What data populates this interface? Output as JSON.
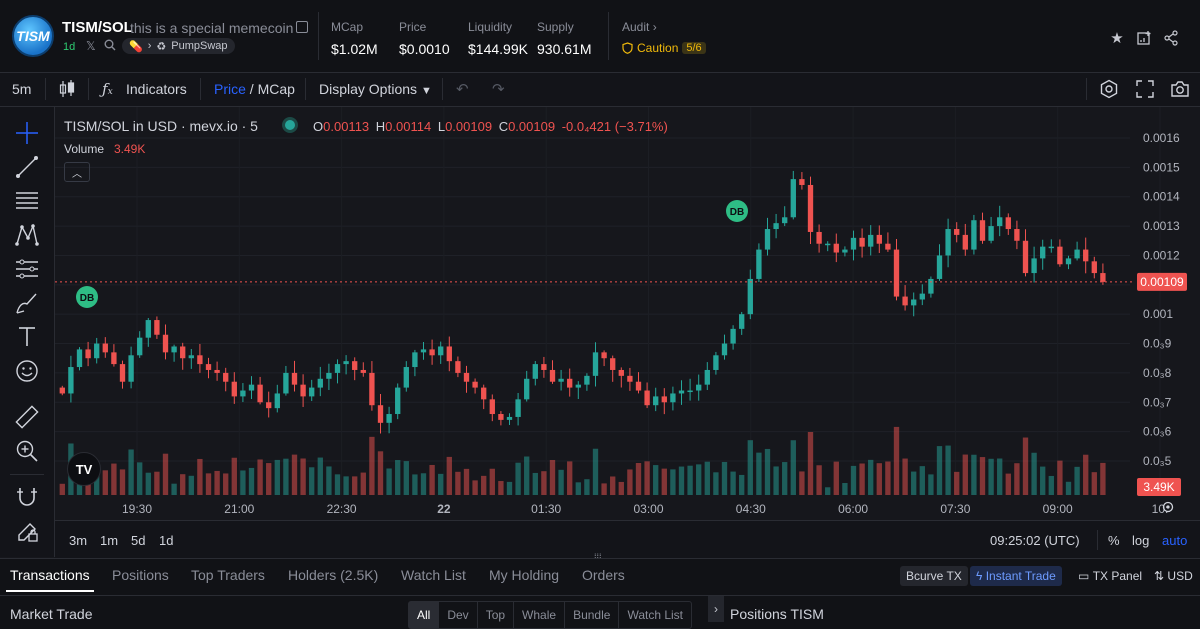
{
  "header": {
    "logo_text": "TISM",
    "pair": "TISM/SOL",
    "description": "this is a special memecoin",
    "age": "1d",
    "route": "PumpSwap",
    "stats": [
      {
        "label": "MCap",
        "value": "$1.02M"
      },
      {
        "label": "Price",
        "value": "$0.0010"
      },
      {
        "label": "Liquidity",
        "value": "$144.99K"
      },
      {
        "label": "Supply",
        "value": "930.61M"
      }
    ],
    "audit_label": "Audit",
    "caution_label": "Caution",
    "caution_score": "5/6"
  },
  "toolbar": {
    "interval": "5m",
    "indicators": "Indicators",
    "price_label": "Price",
    "mcap_label": "MCap",
    "display_options": "Display Options"
  },
  "chart_header": {
    "title": "TISM/SOL in USD · mevx.io · 5",
    "o_label": "O",
    "o": "0.00113",
    "h_label": "H",
    "h": "0.00114",
    "l_label": "L",
    "l": "0.00109",
    "c_label": "C",
    "c": "0.00109",
    "change": "-0.0₄421 (−3.71%)",
    "volume_label": "Volume",
    "volume_value": "3.49K"
  },
  "chart_data": {
    "type": "candlestick",
    "y_ticks": [
      "0.0016",
      "0.0015",
      "0.0014",
      "0.0013",
      "0.0012",
      "0.0011",
      "0.001",
      "0.0₃9",
      "0.0₃8",
      "0.0₃7",
      "0.0₃6",
      "0.0₃5"
    ],
    "y_tick_values": [
      0.0016,
      0.0015,
      0.0014,
      0.0013,
      0.0012,
      0.0011,
      0.001,
      0.0009,
      0.0008,
      0.0007,
      0.0006,
      0.0005
    ],
    "hidden_tick_index": 5,
    "x_ticks": [
      "19:30",
      "21:00",
      "22:30",
      "22",
      "01:30",
      "03:00",
      "04:30",
      "06:00",
      "07:30",
      "09:00",
      "10:"
    ],
    "close_path": [
      0.00073,
      0.00082,
      0.00088,
      0.00085,
      0.0009,
      0.00087,
      0.00083,
      0.00077,
      0.00086,
      0.00092,
      0.00098,
      0.00093,
      0.00087,
      0.00089,
      0.00085,
      0.00086,
      0.00083,
      0.00081,
      0.0008,
      0.00077,
      0.00072,
      0.00074,
      0.00076,
      0.0007,
      0.00068,
      0.00073,
      0.0008,
      0.00076,
      0.00072,
      0.00075,
      0.00078,
      0.0008,
      0.00083,
      0.00084,
      0.00081,
      0.0008,
      0.00069,
      0.00063,
      0.00066,
      0.00075,
      0.00082,
      0.00087,
      0.00088,
      0.00086,
      0.00089,
      0.00084,
      0.0008,
      0.00077,
      0.00075,
      0.00071,
      0.00066,
      0.00064,
      0.00065,
      0.00071,
      0.00078,
      0.00083,
      0.00081,
      0.00077,
      0.00078,
      0.00075,
      0.00076,
      0.00079,
      0.00087,
      0.00085,
      0.00081,
      0.00079,
      0.00077,
      0.00074,
      0.00069,
      0.00072,
      0.0007,
      0.00073,
      0.00074,
      0.00074,
      0.00076,
      0.00081,
      0.00086,
      0.0009,
      0.00095,
      0.001,
      0.00112,
      0.00122,
      0.00129,
      0.00131,
      0.00133,
      0.00146,
      0.00144,
      0.00128,
      0.00124,
      0.00124,
      0.00121,
      0.00122,
      0.00126,
      0.00123,
      0.00127,
      0.00124,
      0.00122,
      0.00106,
      0.00103,
      0.00105,
      0.00107,
      0.00112,
      0.0012,
      0.00129,
      0.00127,
      0.00122,
      0.00132,
      0.00125,
      0.0013,
      0.00133,
      0.00129,
      0.00125,
      0.00114,
      0.00119,
      0.00123,
      0.00123,
      0.00117,
      0.00119,
      0.00122,
      0.00118,
      0.00114,
      0.00111
    ],
    "price_label": "0.00109",
    "volume_label": "3.49K",
    "markers": [
      {
        "label": "DB"
      },
      {
        "label": "DB"
      }
    ]
  },
  "time_row": {
    "ranges": [
      "3m",
      "1m",
      "5d",
      "1d"
    ],
    "clock": "09:25:02 (UTC)",
    "percent": "%",
    "log": "log",
    "auto": "auto"
  },
  "bottom": {
    "tabs": [
      "Transactions",
      "Positions",
      "Top Traders",
      "Holders (2.5K)",
      "Watch List",
      "My Holding",
      "Orders"
    ],
    "right": {
      "bcurve": "Bcurve TX",
      "instant": "Instant Trade",
      "txpanel": "TX Panel",
      "currency": "USD"
    },
    "market_trade": "Market Trade",
    "filters": [
      "All",
      "Dev",
      "Top",
      "Whale",
      "Bundle",
      "Watch List"
    ],
    "positions_title": "Positions TISM"
  },
  "colors": {
    "up": "#26a69a",
    "down": "#ef5350",
    "accent": "#2962ff",
    "caution": "#f0b90b"
  }
}
